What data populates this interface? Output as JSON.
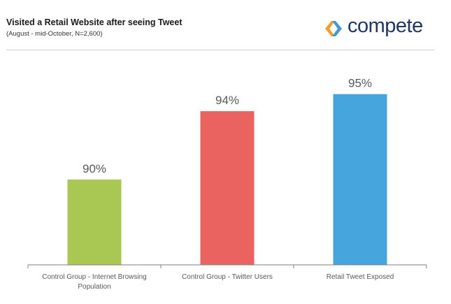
{
  "header": {
    "title": "Visited a Retail Website after seeing Tweet",
    "subtitle": "(August - mid-October, N=2,600)",
    "logo_text": "compete"
  },
  "colors": {
    "logo_orange": "#F4A024",
    "logo_blue": "#3D9AD6",
    "logo_text": "#1F3864"
  },
  "chart_data": {
    "type": "bar",
    "title": "Visited a Retail Website after seeing Tweet",
    "subtitle": "(August - mid-October, N=2,600)",
    "categories": [
      [
        "Control Group - Internet Browsing",
        "Population"
      ],
      [
        "Control Group - Twitter Users"
      ],
      [
        "Retail Tweet Exposed"
      ]
    ],
    "values": [
      90,
      94,
      95
    ],
    "value_labels": [
      "90%",
      "94%",
      "95%"
    ],
    "colors": [
      "#A8C853",
      "#EB6360",
      "#45A5DC"
    ],
    "xlabel": "",
    "ylabel": "",
    "ylim": [
      85,
      95.6
    ],
    "grid": false,
    "legend": "none"
  }
}
